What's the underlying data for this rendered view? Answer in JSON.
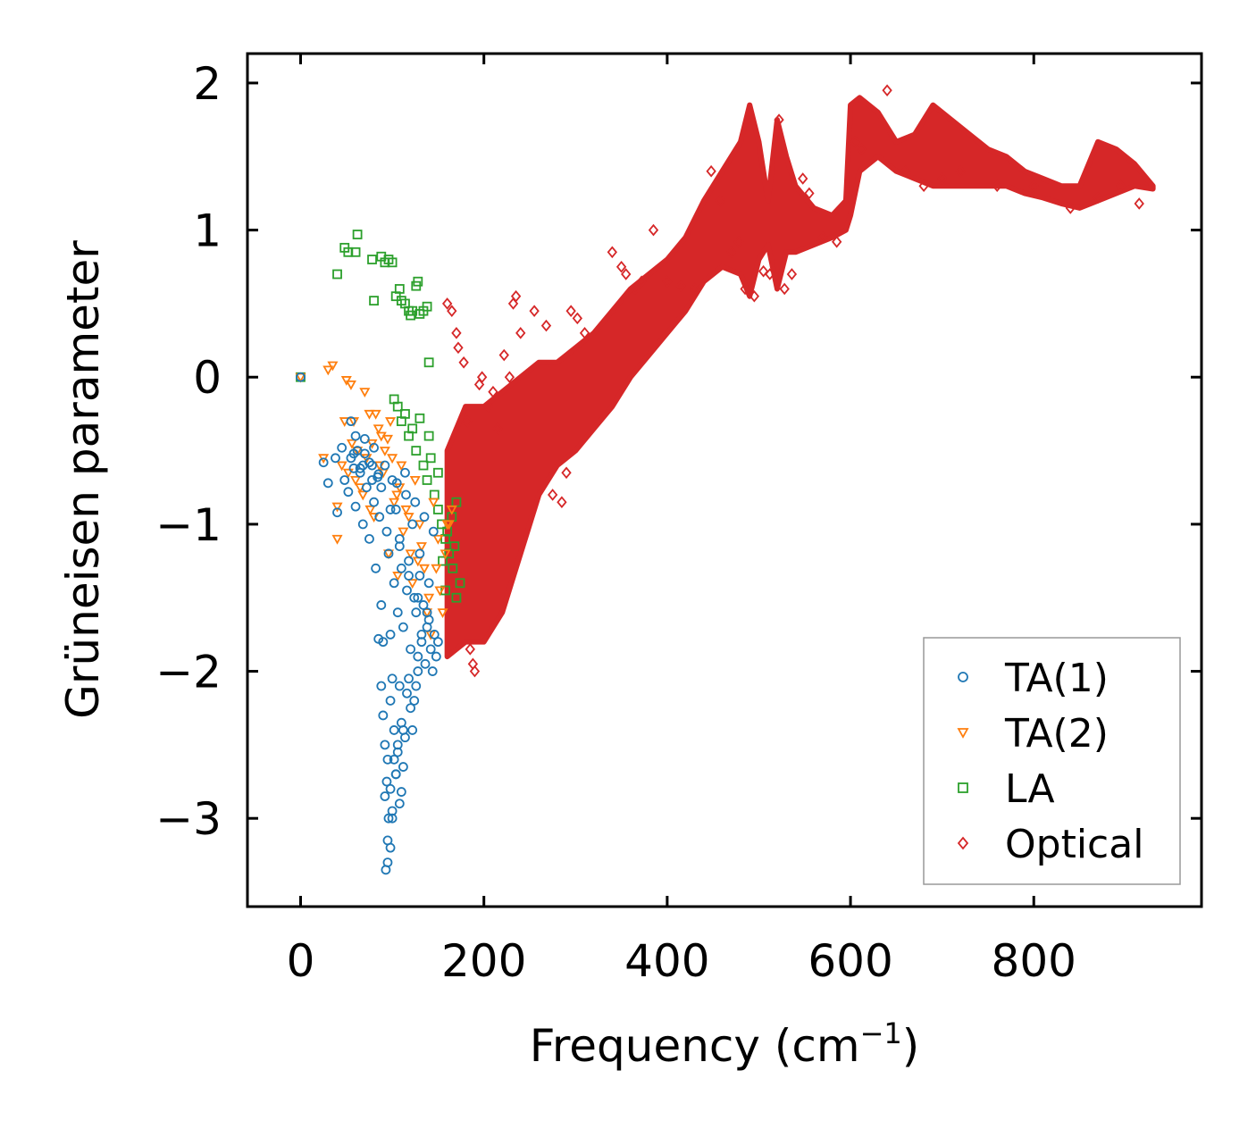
{
  "chart_data": {
    "type": "scatter",
    "title": "",
    "xlabel": "Frequency (cm",
    "xlabel_sup": "−1",
    "xlabel_end": ")",
    "ylabel": "Grüneisen parameter",
    "xlim": [
      -58,
      983
    ],
    "ylim": [
      -3.6,
      2.2
    ],
    "xticks": [
      0,
      200,
      400,
      600,
      800
    ],
    "xtick_labels": [
      "0",
      "200",
      "400",
      "600",
      "800"
    ],
    "yticks": [
      -3,
      -2,
      -1,
      0,
      1,
      2
    ],
    "ytick_labels": [
      "−3",
      "−2",
      "−1",
      "0",
      "1",
      "2"
    ],
    "legend_position": "lower-right",
    "series": [
      {
        "name": "TA(1)",
        "marker": "circle",
        "color": "#1f77b4",
        "x": [
          0,
          25,
          30,
          38,
          40,
          45,
          48,
          52,
          55,
          58,
          60,
          62,
          65,
          68,
          70,
          72,
          75,
          78,
          80,
          82,
          84,
          86,
          88,
          90,
          92,
          94,
          96,
          98,
          100,
          102,
          104,
          106,
          108,
          110,
          112,
          114,
          116,
          118,
          120,
          122,
          124,
          126,
          128,
          130,
          132,
          134,
          136,
          138,
          140,
          142,
          144,
          146,
          148,
          150,
          85,
          88,
          90,
          92,
          95,
          98,
          100,
          102,
          104,
          106,
          108,
          110,
          112,
          114,
          116,
          118,
          120,
          122,
          124,
          126,
          128,
          92,
          94,
          96,
          98,
          100,
          102,
          104,
          106,
          108,
          110,
          112,
          95,
          98,
          100,
          93,
          95,
          60,
          70,
          80,
          55,
          65,
          75,
          85,
          105,
          115,
          125,
          135,
          145,
          130,
          140,
          138,
          132,
          128,
          118,
          108,
          98,
          88,
          78,
          68,
          58
        ],
        "y": [
          0.0,
          -0.58,
          -0.72,
          -0.55,
          -0.92,
          -0.48,
          -0.7,
          -0.78,
          -0.3,
          -0.62,
          -0.88,
          -0.5,
          -0.65,
          -1.0,
          -0.42,
          -0.75,
          -1.1,
          -0.6,
          -0.85,
          -1.3,
          -0.68,
          -0.95,
          -1.55,
          -1.8,
          -0.6,
          -1.05,
          -1.2,
          -1.75,
          -0.7,
          -1.4,
          -0.9,
          -1.6,
          -1.15,
          -1.3,
          -1.7,
          -0.65,
          -1.45,
          -1.25,
          -1.85,
          -1.0,
          -1.5,
          -1.6,
          -1.9,
          -1.35,
          -1.8,
          -1.55,
          -1.95,
          -1.7,
          -1.65,
          -1.85,
          -2.0,
          -1.75,
          -1.9,
          -1.8,
          -1.78,
          -2.1,
          -2.3,
          -2.5,
          -2.6,
          -2.2,
          -2.05,
          -2.4,
          -2.7,
          -2.55,
          -2.1,
          -2.35,
          -2.65,
          -2.45,
          -2.15,
          -2.05,
          -2.25,
          -2.4,
          -2.2,
          -2.1,
          -2.0,
          -2.85,
          -2.75,
          -3.0,
          -2.8,
          -2.95,
          -2.6,
          -2.7,
          -2.5,
          -2.9,
          -2.82,
          -2.4,
          -3.15,
          -3.2,
          -3.0,
          -3.35,
          -3.3,
          -0.4,
          -0.52,
          -0.48,
          -0.55,
          -0.62,
          -0.58,
          -0.66,
          -0.72,
          -0.8,
          -0.85,
          -0.95,
          -1.05,
          -1.2,
          -1.4,
          -1.6,
          -1.75,
          -1.5,
          -1.35,
          -1.1,
          -0.9,
          -0.75,
          -0.7,
          -0.6,
          -0.52
        ]
      },
      {
        "name": "TA(2)",
        "marker": "triangle-down",
        "color": "#ff7f0e",
        "x": [
          0,
          25,
          30,
          35,
          40,
          45,
          50,
          55,
          58,
          62,
          65,
          70,
          75,
          78,
          80,
          85,
          90,
          95,
          100,
          105,
          110,
          115,
          120,
          125,
          130,
          135,
          140,
          145,
          150,
          155,
          160,
          165,
          48,
          52,
          56,
          60,
          72,
          82,
          88,
          92,
          98,
          102,
          108,
          112,
          118,
          122,
          128,
          132,
          138,
          142,
          148,
          152,
          158,
          162,
          40,
          68,
          76,
          86,
          96,
          106
        ],
        "y": [
          0.0,
          -0.55,
          0.05,
          0.08,
          -1.1,
          -0.6,
          -0.02,
          -0.05,
          -0.3,
          -0.5,
          -0.75,
          -0.1,
          -0.25,
          -0.45,
          -0.95,
          -0.35,
          -0.65,
          -0.42,
          -0.55,
          -0.8,
          -0.6,
          -0.9,
          -1.2,
          -0.7,
          -1.0,
          -1.3,
          -1.5,
          -0.85,
          -1.1,
          -1.6,
          -1.0,
          -0.9,
          -0.3,
          -0.65,
          -0.45,
          -0.7,
          -0.55,
          -0.25,
          -0.4,
          -0.5,
          -0.3,
          -0.85,
          -0.75,
          -1.05,
          -0.95,
          -1.4,
          -1.25,
          -1.15,
          -1.6,
          -1.75,
          -1.3,
          -1.45,
          -1.2,
          -1.0,
          -0.88,
          -0.8,
          -0.9,
          -0.6,
          -1.2,
          -1.35
        ]
      },
      {
        "name": "LA",
        "marker": "square",
        "color": "#2ca02c",
        "x": [
          0,
          40,
          48,
          52,
          60,
          62,
          78,
          80,
          88,
          92,
          96,
          100,
          104,
          108,
          110,
          114,
          118,
          120,
          122,
          126,
          128,
          130,
          134,
          138,
          140,
          102,
          106,
          110,
          114,
          118,
          122,
          126,
          130,
          134,
          138,
          142,
          146,
          150,
          154,
          158,
          162,
          166,
          170,
          174,
          140,
          150,
          160,
          170,
          155,
          165,
          158,
          168
        ],
        "y": [
          0.0,
          0.7,
          0.88,
          0.85,
          0.85,
          0.97,
          0.8,
          0.52,
          0.82,
          0.78,
          0.8,
          0.78,
          0.55,
          0.6,
          0.52,
          0.5,
          0.45,
          0.42,
          0.45,
          0.62,
          0.65,
          0.43,
          0.45,
          0.48,
          0.1,
          -0.15,
          -0.2,
          -0.3,
          -0.25,
          -0.4,
          -0.35,
          -0.5,
          -0.28,
          -0.6,
          -0.7,
          -0.55,
          -0.8,
          -0.9,
          -1.0,
          -1.1,
          -1.2,
          -1.3,
          -0.85,
          -1.4,
          -0.4,
          -0.65,
          -1.05,
          -1.5,
          -1.25,
          -0.95,
          -1.45,
          -1.15
        ]
      },
      {
        "name": "Optical",
        "marker": "diamond",
        "color": "#d62728",
        "band": [
          [
            160,
            -0.5,
            -1.9
          ],
          [
            180,
            -0.2,
            -1.8
          ],
          [
            200,
            -0.2,
            -1.8
          ],
          [
            220,
            -0.1,
            -1.6
          ],
          [
            240,
            0.0,
            -1.2
          ],
          [
            260,
            0.1,
            -0.8
          ],
          [
            280,
            0.1,
            -0.6
          ],
          [
            300,
            0.2,
            -0.5
          ],
          [
            320,
            0.3,
            -0.35
          ],
          [
            340,
            0.45,
            -0.2
          ],
          [
            360,
            0.6,
            0.0
          ],
          [
            380,
            0.7,
            0.15
          ],
          [
            400,
            0.8,
            0.3
          ],
          [
            420,
            0.95,
            0.45
          ],
          [
            440,
            1.2,
            0.65
          ],
          [
            460,
            1.4,
            0.75
          ],
          [
            480,
            1.6,
            0.7
          ],
          [
            490,
            1.85,
            0.55
          ],
          [
            500,
            1.6,
            0.8
          ],
          [
            510,
            1.2,
            0.9
          ],
          [
            520,
            1.75,
            0.6
          ],
          [
            530,
            1.5,
            0.85
          ],
          [
            540,
            1.3,
            0.85
          ],
          [
            560,
            1.15,
            0.9
          ],
          [
            580,
            1.1,
            0.95
          ],
          [
            595,
            1.2,
            1.0
          ],
          [
            600,
            1.85,
            1.1
          ],
          [
            610,
            1.9,
            1.4
          ],
          [
            630,
            1.8,
            1.5
          ],
          [
            650,
            1.6,
            1.4
          ],
          [
            670,
            1.65,
            1.35
          ],
          [
            690,
            1.85,
            1.3
          ],
          [
            710,
            1.75,
            1.3
          ],
          [
            730,
            1.65,
            1.3
          ],
          [
            750,
            1.55,
            1.3
          ],
          [
            770,
            1.5,
            1.3
          ],
          [
            790,
            1.4,
            1.25
          ],
          [
            810,
            1.35,
            1.22
          ],
          [
            830,
            1.3,
            1.18
          ],
          [
            850,
            1.3,
            1.15
          ],
          [
            870,
            1.6,
            1.2
          ],
          [
            890,
            1.55,
            1.25
          ],
          [
            910,
            1.45,
            1.3
          ],
          [
            930,
            1.3,
            1.28
          ]
        ],
        "x": [
          160,
          165,
          170,
          172,
          178,
          182,
          185,
          188,
          190,
          195,
          198,
          205,
          210,
          215,
          222,
          228,
          232,
          235,
          240,
          255,
          268,
          275,
          285,
          290,
          295,
          302,
          310,
          340,
          350,
          355,
          365,
          372,
          385,
          400,
          415,
          430,
          448,
          458,
          470,
          478,
          485,
          495,
          505,
          512,
          522,
          528,
          536,
          548,
          555,
          570,
          585,
          605,
          612,
          640,
          660,
          680,
          700,
          720,
          760,
          800,
          840,
          870,
          895,
          915
        ],
        "y": [
          0.5,
          0.45,
          0.3,
          0.2,
          0.1,
          -0.3,
          -1.85,
          -1.95,
          -2.0,
          -0.05,
          0.0,
          -0.2,
          -0.1,
          -0.35,
          0.15,
          0.0,
          0.5,
          0.55,
          0.3,
          0.45,
          0.35,
          -0.8,
          -0.85,
          -0.65,
          0.45,
          0.4,
          0.3,
          0.85,
          0.75,
          0.7,
          0.6,
          0.65,
          1.0,
          0.65,
          0.62,
          0.6,
          1.4,
          1.2,
          0.85,
          0.92,
          0.6,
          0.55,
          0.72,
          0.7,
          1.75,
          0.6,
          0.7,
          1.35,
          1.25,
          0.95,
          0.92,
          1.6,
          1.55,
          1.95,
          1.4,
          1.3,
          1.35,
          1.4,
          1.3,
          1.3,
          1.15,
          1.22,
          1.3,
          1.18
        ]
      }
    ]
  }
}
